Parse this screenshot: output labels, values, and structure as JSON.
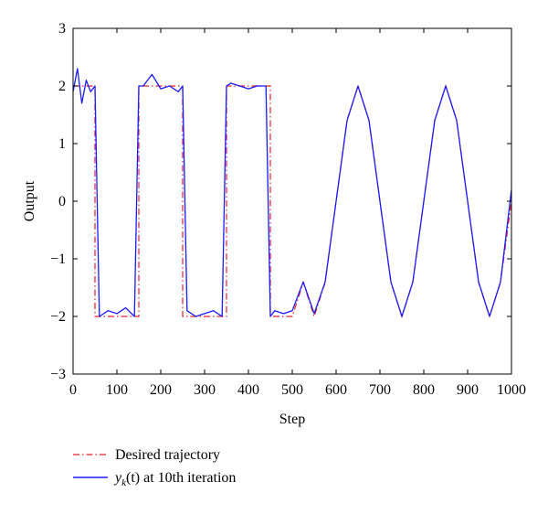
{
  "chart_data": {
    "type": "line",
    "title": "",
    "xlabel": "Step",
    "ylabel": "Output",
    "xlim": [
      0,
      1000
    ],
    "ylim": [
      -3,
      3
    ],
    "xticks": [
      0,
      100,
      200,
      300,
      400,
      500,
      600,
      700,
      800,
      900,
      1000
    ],
    "yticks": [
      -3,
      -2,
      -1,
      0,
      1,
      2,
      3
    ],
    "grid": false,
    "legend_position": "bottom-left, outside plot",
    "series": [
      {
        "name": "Desired trajectory",
        "style": "dash-dot",
        "color": "#e8202a",
        "description": "Square wave of amplitude 2 (period 200 steps) for steps 0–500, then 2*sin(2*pi*(t-600)/200) for steps 500–1000",
        "x": [
          0,
          50,
          50,
          150,
          150,
          250,
          250,
          350,
          350,
          450,
          450,
          500,
          525,
          550,
          575,
          600,
          625,
          650,
          675,
          700,
          725,
          750,
          775,
          800,
          825,
          850,
          875,
          900,
          925,
          950,
          975,
          1000
        ],
        "y": [
          2,
          2,
          -2,
          -2,
          2,
          2,
          -2,
          -2,
          2,
          2,
          -2,
          -2,
          -1.41,
          -2,
          -1.41,
          0,
          1.41,
          2,
          1.41,
          0,
          -1.41,
          -2,
          -1.41,
          0,
          1.41,
          2,
          1.41,
          0,
          -1.41,
          -2,
          -1.41,
          0
        ]
      },
      {
        "name": "y_k(t) at 10th iteration",
        "style": "solid",
        "color": "#1a1aff",
        "description": "Noisy tracking of the desired trajectory with spikes up to about ±0.5 around the reference",
        "x": [
          0,
          10,
          20,
          30,
          40,
          50,
          60,
          80,
          100,
          120,
          140,
          150,
          160,
          180,
          200,
          220,
          240,
          250,
          260,
          280,
          300,
          320,
          340,
          350,
          360,
          380,
          400,
          420,
          440,
          450,
          460,
          480,
          500,
          525,
          550,
          575,
          600,
          625,
          650,
          675,
          700,
          725,
          750,
          775,
          800,
          825,
          850,
          875,
          900,
          925,
          950,
          975,
          1000
        ],
        "y": [
          1.9,
          2.3,
          1.7,
          2.1,
          1.9,
          2.0,
          -2.0,
          -1.9,
          -1.95,
          -1.85,
          -2.0,
          2.0,
          2.0,
          2.2,
          1.95,
          2.0,
          1.9,
          2.0,
          -1.9,
          -2.0,
          -1.95,
          -1.9,
          -2.0,
          2.0,
          2.05,
          2.0,
          1.95,
          2.0,
          2.0,
          -2.0,
          -1.9,
          -1.95,
          -1.9,
          -1.4,
          -1.95,
          -1.4,
          0.0,
          1.4,
          2.0,
          1.4,
          0.0,
          -1.4,
          -2.0,
          -1.4,
          0.0,
          1.4,
          2.0,
          1.4,
          0.0,
          -1.4,
          -2.0,
          -1.4,
          0.2
        ]
      }
    ],
    "legend": [
      {
        "label": "Desired trajectory",
        "color": "#e8202a",
        "style": "dash-dot"
      },
      {
        "label_main": "y",
        "label_sub": "k",
        "label_rest": "(t) at 10th iteration",
        "color": "#1a1aff",
        "style": "solid"
      }
    ]
  }
}
